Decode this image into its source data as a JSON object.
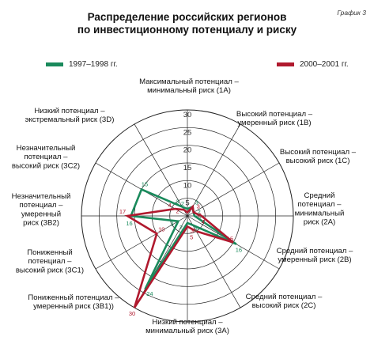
{
  "figure_label": "График 3",
  "title_line1": "Распределение российских регионов",
  "title_line2": "по инвестиционному потенциалу и риску",
  "colors": {
    "series_1997": "#1a8a5c",
    "series_2000": "#b0192e",
    "grid": "#222222",
    "tick_text": "#333333"
  },
  "chart_data": {
    "type": "radar",
    "title": "Распределение российских регионов по инвестиционному потенциалу и риску",
    "rlim": [
      0,
      30
    ],
    "r_ticks": [
      "5",
      "10",
      "15",
      "20",
      "25",
      "30"
    ],
    "grid": true,
    "legend": "top",
    "categories": [
      [
        "Максимальный потенциал –",
        "минимальный риск (1A)"
      ],
      [
        "Высокий потенциал –",
        "умеренный риск (1B)"
      ],
      [
        "Высокий потенциал –",
        "высокий риск (1C)"
      ],
      [
        "Средний",
        "потенциал –",
        "минимальный",
        "риск (2A)"
      ],
      [
        "Средний потенциал –",
        "умеренный риск (2B)"
      ],
      [
        "Средний потенциал –",
        "высокий риск (2C)"
      ],
      [
        "Низкий потенциал –",
        "минимальный риск (3A)"
      ],
      [
        "Пониженный потенциал –",
        "умеренный риск (3B1))"
      ],
      [
        "Пониженный",
        "потенциал –",
        "высокий риск (3C1)"
      ],
      [
        "Незначительный",
        "потенциал –",
        "умеренный",
        "риск (3B2)"
      ],
      [
        "Незначительный",
        "потенциал –",
        "высокий риск (3C2)"
      ],
      [
        "Низкий потенциал –",
        "экстремальный риск (3D)"
      ]
    ],
    "series": [
      {
        "name": "1997–1998 гг.",
        "values": [
          2,
          3,
          2,
          2,
          16,
          3,
          2,
          24,
          3,
          16,
          15,
          3
        ]
      },
      {
        "name": "2000–2001 гг.",
        "values": [
          1,
          3,
          2,
          4,
          15,
          5,
          3,
          30,
          10,
          17,
          4,
          2
        ]
      }
    ]
  }
}
